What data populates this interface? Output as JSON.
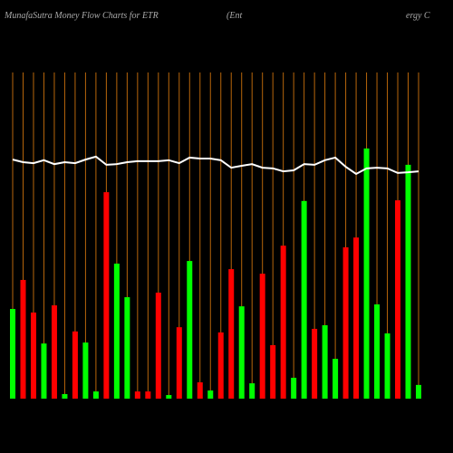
{
  "chart_data": {
    "type": "bar",
    "title": "MunafaSutra  Money Flow  Charts for ETR",
    "subtitle": [
      "(Ent",
      "ergy C"
    ],
    "categories": [
      null,
      null,
      null,
      null,
      null,
      null,
      null,
      null,
      null,
      null,
      null,
      null,
      null,
      null,
      null,
      null,
      null,
      null,
      null,
      null,
      null,
      null,
      null,
      null,
      null,
      null,
      null,
      null,
      null,
      null,
      null,
      null,
      null,
      null,
      null,
      null,
      null,
      null,
      null,
      null
    ],
    "values": [
      27.5,
      36.4,
      26.4,
      16.9,
      28.6,
      1.4,
      20.6,
      17.2,
      2.2,
      63.3,
      41.4,
      31.1,
      2.2,
      2.2,
      32.5,
      1.1,
      21.9,
      42.2,
      5,
      2.5,
      20.3,
      39.7,
      28.3,
      4.7,
      38.3,
      16.4,
      46.9,
      6.4,
      60.6,
      21.4,
      22.5,
      12.2,
      46.4,
      49.4,
      76.7,
      28.9,
      20,
      60.8,
      71.7,
      4.2
    ],
    "colors": [
      "#00ff00",
      "#ff0000",
      "#ff0000",
      "#00ff00",
      "#ff0000",
      "#00ff00",
      "#ff0000",
      "#00ff00",
      "#00ff00",
      "#ff0000",
      "#00ff00",
      "#00ff00",
      "#ff0000",
      "#ff0000",
      "#ff0000",
      "#00ff00",
      "#ff0000",
      "#00ff00",
      "#ff0000",
      "#00ff00",
      "#ff0000",
      "#ff0000",
      "#00ff00",
      "#00ff00",
      "#ff0000",
      "#ff0000",
      "#ff0000",
      "#00ff00",
      "#00ff00",
      "#ff0000",
      "#00ff00",
      "#00ff00",
      "#ff0000",
      "#ff0000",
      "#00ff00",
      "#00ff00",
      "#00ff00",
      "#ff0000",
      "#00ff00",
      "#00ff00"
    ],
    "line": {
      "color": "#ffffff",
      "values": [
        73.3,
        72.5,
        72.2,
        73.1,
        71.9,
        72.5,
        72.2,
        73.3,
        74.2,
        71.7,
        71.9,
        72.5,
        72.8,
        72.8,
        72.8,
        73.1,
        72.2,
        73.9,
        73.6,
        73.6,
        73.1,
        70.8,
        71.4,
        71.9,
        70.8,
        70.6,
        69.7,
        70,
        71.9,
        71.7,
        73.1,
        73.9,
        71.1,
        68.9,
        70.6,
        70.8,
        70.6,
        69.2,
        69.4,
        69.7
      ]
    },
    "ylim": [
      0,
      100
    ],
    "grid_color": "#b8660b"
  }
}
